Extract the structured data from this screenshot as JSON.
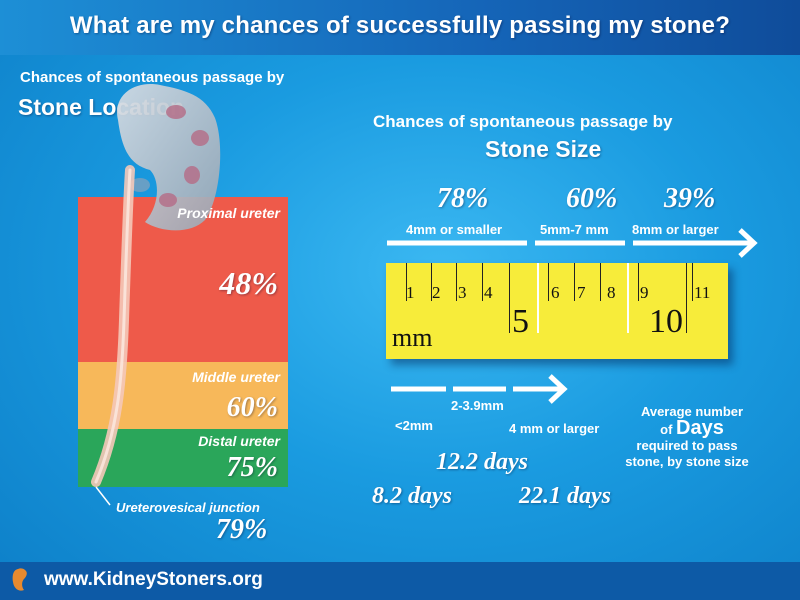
{
  "title": "What are my chances of successfully passing my stone?",
  "location": {
    "heading_small": "Chances of spontaneous passage by",
    "heading_big": "Stone Location",
    "segments": [
      {
        "label": "Proximal ureter",
        "percent": "48%",
        "color": "#ee5a4a"
      },
      {
        "label": "Middle ureter",
        "percent": "60%",
        "color": "#f7b85a"
      },
      {
        "label": "Distal ureter",
        "percent": "75%",
        "color": "#2aa65a"
      }
    ],
    "junction_label": "Ureterovesical junction",
    "junction_percent": "79%"
  },
  "size": {
    "heading_small": "Chances of spontaneous passage by",
    "heading_big": "Stone Size",
    "groups": [
      {
        "percent": "78%",
        "label": "4mm or smaller"
      },
      {
        "percent": "60%",
        "label": "5mm-7 mm"
      },
      {
        "percent": "39%",
        "label": "8mm or larger"
      }
    ]
  },
  "ruler": {
    "unit": "mm",
    "numbers": [
      "1",
      "2",
      "3",
      "4",
      "6",
      "7",
      "8",
      "9",
      "11"
    ],
    "big_numbers": [
      "5",
      "10"
    ],
    "color": "#f7ec3a"
  },
  "days": {
    "size_labels": [
      "<2mm",
      "2-3.9mm",
      "4 mm or larger"
    ],
    "values": [
      "8.2 days",
      "12.2 days",
      "22.1 days"
    ],
    "caption_pre": "Average number",
    "caption_of": "of",
    "caption_days": "Days",
    "caption_rest": "required to pass stone, by stone size"
  },
  "footer": {
    "url": "www.KidneyStoners.org"
  }
}
